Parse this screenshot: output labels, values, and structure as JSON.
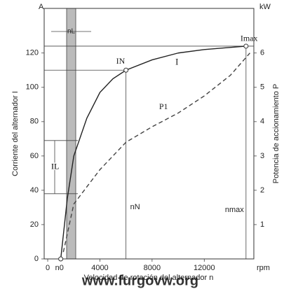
{
  "chart_data": {
    "type": "line",
    "x_label": "Velocidad de rotación del alternador n",
    "y_label": "Corriente del alternador I",
    "y2_label": "Potencia de accionamiento P",
    "y_unit": "A",
    "y2_unit": "kW",
    "x_unit": "rpm",
    "watermark": "www.furgovw.org",
    "xlim": [
      -270,
      15800
    ],
    "xticks": [
      0,
      4000,
      8000,
      12000
    ],
    "ylim": [
      0,
      146
    ],
    "yticks": [
      0,
      20,
      40,
      60,
      80,
      100,
      120
    ],
    "y2lim": [
      0,
      7.3
    ],
    "y2ticks": [
      1,
      2,
      3,
      4,
      5,
      6
    ],
    "series": [
      {
        "name": "I",
        "color": "#222222",
        "dash": false,
        "x": [
          1000,
          1500,
          2000,
          3000,
          4000,
          5000,
          6000,
          8000,
          10000,
          12000,
          15200
        ],
        "values": [
          0,
          35,
          60,
          82,
          97,
          105,
          110,
          116,
          120,
          122,
          124
        ]
      },
      {
        "name": "P1",
        "color": "#444444",
        "dash": true,
        "axis": "y2",
        "x": [
          1200,
          2000,
          4000,
          6000,
          8000,
          10000,
          12000,
          14000,
          15500
        ],
        "values": [
          0.2,
          1.6,
          2.6,
          3.4,
          3.85,
          4.25,
          4.75,
          5.35,
          6.0
        ]
      }
    ],
    "annotations": {
      "rated_current": {
        "label": "IN",
        "x": 6000,
        "value": 110,
        "x_label": "nN"
      },
      "max_current": {
        "label": "Imax",
        "x": 15200,
        "value": 124,
        "x_label": "nmax"
      },
      "idle_speed": {
        "label": "n0",
        "x": 1000
      },
      "current_range": {
        "label": "IL",
        "values": [
          38,
          69
        ]
      },
      "speed_range": {
        "label": "nL",
        "x": [
          1450,
          2150
        ]
      }
    }
  }
}
